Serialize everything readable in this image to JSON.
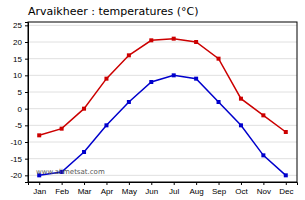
{
  "chart_data": {
    "type": "line",
    "title": "Arvaikheer : temperatures (°C)",
    "categories": [
      "Jan",
      "Feb",
      "Mar",
      "Apr",
      "May",
      "Jun",
      "Jul",
      "Aug",
      "Sep",
      "Oct",
      "Nov",
      "Dec"
    ],
    "series": [
      {
        "color": "#cc0000",
        "values": [
          -8,
          -6,
          0,
          9,
          16,
          20.5,
          21,
          20,
          15,
          3,
          -2,
          -7
        ]
      },
      {
        "color": "#0000cc",
        "values": [
          -20,
          -19,
          -13,
          -5,
          2,
          8,
          10,
          9,
          2,
          -5,
          -14,
          -20
        ]
      }
    ],
    "ylim": [
      -22,
      26
    ],
    "yticks": [
      -20,
      -15,
      -10,
      -5,
      0,
      5,
      10,
      15,
      20,
      25
    ],
    "grid": true,
    "marker": "square",
    "annotations": [
      "www.allmetsat.com"
    ]
  }
}
